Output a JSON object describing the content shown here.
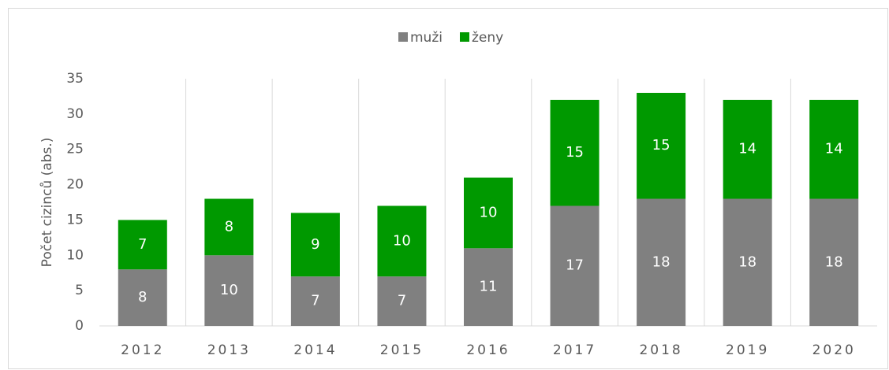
{
  "chart_data": {
    "type": "bar",
    "stacked": true,
    "y_label": "Počet cizinců (abs.)",
    "categories": [
      "2012",
      "2013",
      "2014",
      "2015",
      "2016",
      "2017",
      "2018",
      "2019",
      "2020"
    ],
    "series": [
      {
        "name": "muži",
        "color": "#808080",
        "values": [
          8,
          10,
          7,
          7,
          11,
          17,
          18,
          18,
          18
        ]
      },
      {
        "name": "ženy",
        "color": "#009900",
        "values": [
          7,
          8,
          9,
          10,
          10,
          15,
          15,
          14,
          14
        ]
      }
    ],
    "ylim": [
      0,
      35
    ],
    "yticks": [
      0,
      5,
      10,
      15,
      20,
      25,
      30,
      35
    ],
    "legend": "top",
    "grid": false,
    "category_separators": true
  }
}
